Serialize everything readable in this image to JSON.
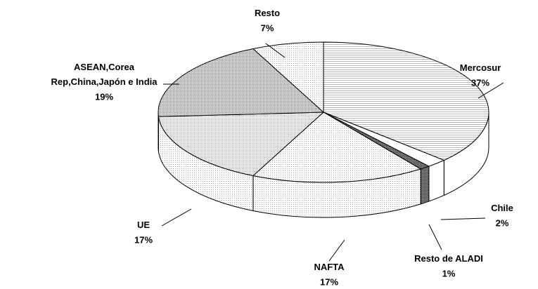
{
  "chart_data": {
    "type": "pie3d",
    "categories": [
      "Mercosur",
      "Chile",
      "Resto de ALADI",
      "NAFTA",
      "UE",
      "ASEAN,Corea\nRep,China,Japón e India",
      "Resto"
    ],
    "values": [
      37,
      2,
      1,
      17,
      17,
      19,
      7
    ],
    "value_labels": [
      "37%",
      "2%",
      "1%",
      "17%",
      "17%",
      "19%",
      "7%"
    ]
  }
}
